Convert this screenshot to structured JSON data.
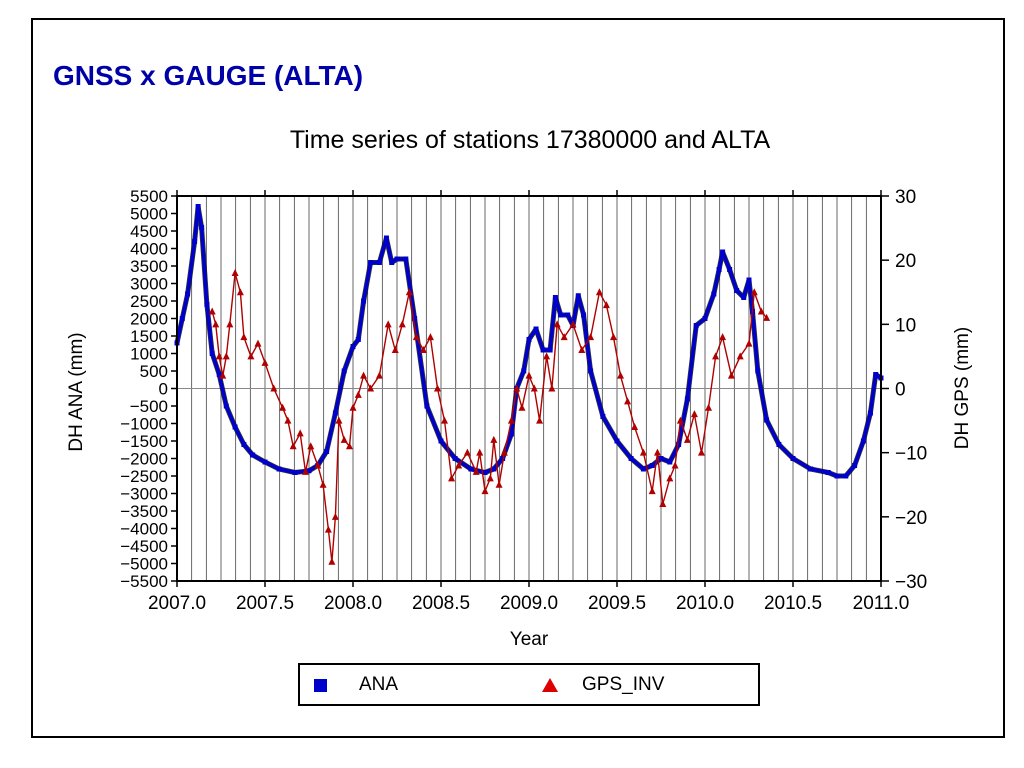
{
  "slide": {
    "heading": "GNSS x GAUGE (ALTA)",
    "heading_color": "#0000a8"
  },
  "legend": {
    "items": [
      {
        "label": "ANA",
        "marker": "blue-square",
        "color": "#0000cc"
      },
      {
        "label": "GPS_INV",
        "marker": "red-triangle",
        "color": "#dd0000"
      }
    ]
  },
  "chart_data": {
    "type": "line",
    "title": "Time series of stations 17380000 and ALTA",
    "xlabel": "Year",
    "ylabel_left": "DH ANA (mm)",
    "ylabel_right": "DH GPS (mm)",
    "xlim": [
      2007.0,
      2011.0
    ],
    "ylim_left": [
      -5500,
      5500
    ],
    "ylim_right": [
      -30,
      30
    ],
    "x_ticks": [
      2007.0,
      2007.5,
      2008.0,
      2008.5,
      2009.0,
      2009.5,
      2010.0,
      2010.5,
      2011.0
    ],
    "x_tick_labels": [
      "2007.0",
      "2007.5",
      "2008.0",
      "2008.5",
      "2009.0",
      "2009.5",
      "2010.0",
      "2010.5",
      "2011.0"
    ],
    "y_left_ticks": [
      5500,
      5000,
      4500,
      4000,
      3500,
      3000,
      2500,
      2000,
      1500,
      1000,
      500,
      0,
      -500,
      -1000,
      -1500,
      -2000,
      -2500,
      -3000,
      -3500,
      -4000,
      -4500,
      -5000,
      -5500
    ],
    "y_left_tick_labels": [
      "5500",
      "5000",
      "4500",
      "4000",
      "3500",
      "3000",
      "2500",
      "2000",
      "1500",
      "1000",
      "500",
      "0",
      "−500",
      "−1000",
      "−1500",
      "−2000",
      "−2500",
      "−3000",
      "−3500",
      "−4000",
      "−4500",
      "−5000",
      "−5500"
    ],
    "y_right_ticks": [
      30,
      20,
      10,
      0,
      -10,
      -20,
      -30
    ],
    "y_right_tick_labels": [
      "30",
      "20",
      "10",
      "0",
      "−10",
      "−20",
      "−30"
    ],
    "grid": "vertical monthly lines, horizontal zero line",
    "legend_position": "bottom",
    "series": [
      {
        "name": "ANA",
        "axis": "left",
        "color": "#0000cc",
        "marker": "square",
        "x": [
          2007.0,
          2007.03,
          2007.06,
          2007.1,
          2007.12,
          2007.14,
          2007.17,
          2007.2,
          2007.24,
          2007.28,
          2007.33,
          2007.38,
          2007.43,
          2007.5,
          2007.58,
          2007.67,
          2007.75,
          2007.8,
          2007.85,
          2007.9,
          2007.95,
          2008.0,
          2008.03,
          2008.06,
          2008.1,
          2008.15,
          2008.19,
          2008.22,
          2008.25,
          2008.3,
          2008.35,
          2008.42,
          2008.5,
          2008.58,
          2008.67,
          2008.75,
          2008.8,
          2008.85,
          2008.9,
          2008.93,
          2008.97,
          2009.0,
          2009.04,
          2009.08,
          2009.12,
          2009.15,
          2009.18,
          2009.22,
          2009.25,
          2009.28,
          2009.31,
          2009.35,
          2009.42,
          2009.5,
          2009.58,
          2009.65,
          2009.7,
          2009.75,
          2009.8,
          2009.85,
          2009.9,
          2009.95,
          2010.0,
          2010.05,
          2010.08,
          2010.1,
          2010.14,
          2010.18,
          2010.22,
          2010.25,
          2010.27,
          2010.3,
          2010.35,
          2010.42,
          2010.5,
          2010.6,
          2010.7,
          2010.75,
          2010.8,
          2010.85,
          2010.9,
          2010.94,
          2010.97,
          2011.0
        ],
        "y": [
          1300,
          2000,
          2700,
          4200,
          5200,
          4600,
          2400,
          1000,
          400,
          -500,
          -1100,
          -1600,
          -1900,
          -2100,
          -2300,
          -2400,
          -2350,
          -2200,
          -1800,
          -700,
          500,
          1200,
          1400,
          2500,
          3600,
          3600,
          4300,
          3600,
          3700,
          3700,
          2000,
          -500,
          -1500,
          -2000,
          -2300,
          -2400,
          -2300,
          -2000,
          -1300,
          0,
          500,
          1400,
          1700,
          1100,
          1100,
          2600,
          2100,
          2100,
          1800,
          2650,
          2100,
          500,
          -800,
          -1500,
          -2000,
          -2300,
          -2200,
          -2000,
          -2100,
          -1600,
          -300,
          1800,
          2000,
          2700,
          3400,
          3900,
          3400,
          2800,
          2600,
          3100,
          2200,
          500,
          -900,
          -1600,
          -2000,
          -2300,
          -2400,
          -2500,
          -2500,
          -2200,
          -1500,
          -700,
          400,
          300
        ]
      },
      {
        "name": "GPS_INV",
        "axis": "right",
        "color": "#b00000",
        "marker": "triangle",
        "x": [
          2007.2,
          2007.22,
          2007.24,
          2007.26,
          2007.28,
          2007.3,
          2007.33,
          2007.36,
          2007.38,
          2007.42,
          2007.46,
          2007.5,
          2007.55,
          2007.6,
          2007.63,
          2007.66,
          2007.7,
          2007.73,
          2007.76,
          2007.8,
          2007.83,
          2007.86,
          2007.88,
          2007.9,
          2007.92,
          2007.95,
          2007.98,
          2008.0,
          2008.03,
          2008.06,
          2008.1,
          2008.15,
          2008.2,
          2008.24,
          2008.28,
          2008.32,
          2008.36,
          2008.4,
          2008.44,
          2008.48,
          2008.52,
          2008.56,
          2008.6,
          2008.65,
          2008.7,
          2008.72,
          2008.75,
          2008.78,
          2008.8,
          2008.83,
          2008.86,
          2008.9,
          2008.93,
          2008.96,
          2009.0,
          2009.03,
          2009.06,
          2009.1,
          2009.13,
          2009.16,
          2009.2,
          2009.25,
          2009.3,
          2009.35,
          2009.4,
          2009.44,
          2009.48,
          2009.52,
          2009.56,
          2009.6,
          2009.65,
          2009.7,
          2009.73,
          2009.76,
          2009.8,
          2009.83,
          2009.86,
          2009.9,
          2009.94,
          2009.98,
          2010.02,
          2010.06,
          2010.1,
          2010.15,
          2010.2,
          2010.25,
          2010.28,
          2010.32,
          2010.35
        ],
        "y": [
          12,
          10,
          5,
          2,
          5,
          10,
          18,
          15,
          8,
          5,
          7,
          4,
          0,
          -3,
          -5,
          -9,
          -7,
          -13,
          -9,
          -12,
          -15,
          -22,
          -27,
          -20,
          -5,
          -8,
          -9,
          -3,
          -1,
          2,
          0,
          2,
          10,
          6,
          10,
          15,
          8,
          6,
          8,
          0,
          -5,
          -14,
          -12,
          -10,
          -13,
          -10,
          -16,
          -14,
          -8,
          -15,
          -10,
          -5,
          0,
          -3,
          2,
          0,
          -5,
          5,
          0,
          10,
          8,
          10,
          6,
          8,
          15,
          13,
          8,
          2,
          -2,
          -6,
          -10,
          -16,
          -10,
          -18,
          -14,
          -12,
          -5,
          -8,
          -4,
          -10,
          -3,
          5,
          8,
          2,
          5,
          7,
          15,
          12,
          11
        ]
      }
    ]
  }
}
